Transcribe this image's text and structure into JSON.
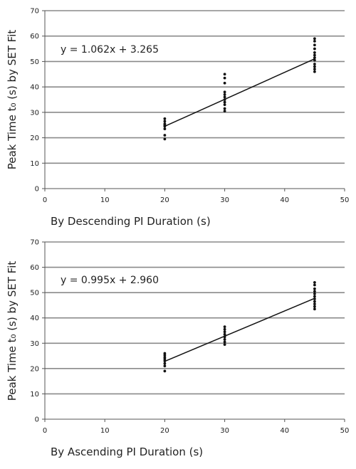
{
  "chart_data": [
    {
      "type": "scatter",
      "xlabel": "By Descending PI Duration (s)",
      "ylabel": "Peak Time t₀ (s) by SET Fit",
      "xlim": [
        0,
        50
      ],
      "ylim": [
        0,
        70
      ],
      "xticks": [
        "0",
        "10",
        "20",
        "30",
        "40",
        "50"
      ],
      "yticks": [
        "0",
        "10",
        "20",
        "30",
        "40",
        "50",
        "60",
        "70"
      ],
      "grid": "horizontal",
      "points": [
        {
          "x": 20,
          "y": 19.5
        },
        {
          "x": 20,
          "y": 21
        },
        {
          "x": 20,
          "y": 23.5
        },
        {
          "x": 20,
          "y": 24.5
        },
        {
          "x": 20,
          "y": 25
        },
        {
          "x": 20,
          "y": 25.5
        },
        {
          "x": 20,
          "y": 26.5
        },
        {
          "x": 20,
          "y": 27.5
        },
        {
          "x": 30,
          "y": 30.5
        },
        {
          "x": 30,
          "y": 31.5
        },
        {
          "x": 30,
          "y": 33
        },
        {
          "x": 30,
          "y": 34
        },
        {
          "x": 30,
          "y": 35
        },
        {
          "x": 30,
          "y": 36
        },
        {
          "x": 30,
          "y": 37
        },
        {
          "x": 30,
          "y": 38
        },
        {
          "x": 30,
          "y": 41.5
        },
        {
          "x": 30,
          "y": 43.5
        },
        {
          "x": 30,
          "y": 45
        },
        {
          "x": 45,
          "y": 46
        },
        {
          "x": 45,
          "y": 47
        },
        {
          "x": 45,
          "y": 48
        },
        {
          "x": 45,
          "y": 49
        },
        {
          "x": 45,
          "y": 50.5
        },
        {
          "x": 45,
          "y": 51.5
        },
        {
          "x": 45,
          "y": 52.5
        },
        {
          "x": 45,
          "y": 53.5
        },
        {
          "x": 45,
          "y": 55
        },
        {
          "x": 45,
          "y": 56.5
        },
        {
          "x": 45,
          "y": 58
        },
        {
          "x": 45,
          "y": 59
        }
      ],
      "trendline": {
        "slope": 1.062,
        "intercept": 3.265,
        "x_range": [
          20,
          45
        ]
      },
      "annotation": "y = 1.062x + 3.265"
    },
    {
      "type": "scatter",
      "xlabel": "By Ascending PI Duration (s)",
      "ylabel": "Peak Time t₀ (s) by SET Fit",
      "xlim": [
        0,
        50
      ],
      "ylim": [
        0,
        70
      ],
      "xticks": [
        "0",
        "10",
        "20",
        "30",
        "40",
        "50"
      ],
      "yticks": [
        "0",
        "10",
        "20",
        "30",
        "40",
        "50",
        "60",
        "70"
      ],
      "grid": "horizontal",
      "points": [
        {
          "x": 20,
          "y": 19
        },
        {
          "x": 20,
          "y": 21
        },
        {
          "x": 20,
          "y": 22
        },
        {
          "x": 20,
          "y": 23
        },
        {
          "x": 20,
          "y": 23.8
        },
        {
          "x": 20,
          "y": 24.5
        },
        {
          "x": 20,
          "y": 25.3
        },
        {
          "x": 20,
          "y": 26
        },
        {
          "x": 30,
          "y": 29.5
        },
        {
          "x": 30,
          "y": 30.5
        },
        {
          "x": 30,
          "y": 31.5
        },
        {
          "x": 30,
          "y": 32.5
        },
        {
          "x": 30,
          "y": 33.5
        },
        {
          "x": 30,
          "y": 34.5
        },
        {
          "x": 30,
          "y": 35.5
        },
        {
          "x": 30,
          "y": 36.5
        },
        {
          "x": 45,
          "y": 43.5
        },
        {
          "x": 45,
          "y": 44.5
        },
        {
          "x": 45,
          "y": 45.5
        },
        {
          "x": 45,
          "y": 46.5
        },
        {
          "x": 45,
          "y": 47.5
        },
        {
          "x": 45,
          "y": 48.5
        },
        {
          "x": 45,
          "y": 49.5
        },
        {
          "x": 45,
          "y": 50.5
        },
        {
          "x": 45,
          "y": 51.5
        },
        {
          "x": 45,
          "y": 53
        },
        {
          "x": 45,
          "y": 54
        }
      ],
      "trendline": {
        "slope": 0.995,
        "intercept": 2.96,
        "x_range": [
          20,
          45
        ]
      },
      "annotation": "y = 0.995x + 2.960"
    }
  ]
}
